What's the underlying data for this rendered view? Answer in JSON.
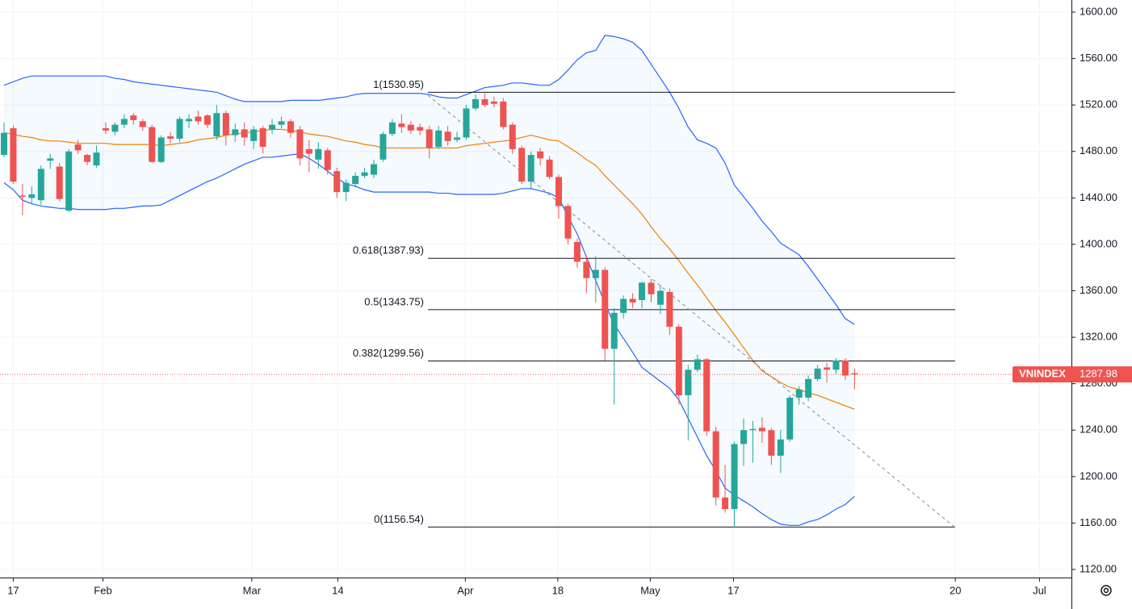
{
  "chart_data": {
    "type": "candlestick",
    "up_color": "#26a69a",
    "down_color": "#ef5350",
    "open": [
      1477,
      1500,
      1442,
      1440,
      1438,
      1472,
      1467,
      1429,
      1486,
      1477,
      1468,
      1500,
      1497,
      1503,
      1511,
      1506,
      1501,
      1471,
      1493,
      1491,
      1506,
      1510,
      1511,
      1493,
      1513,
      1494,
      1499,
      1489,
      1500,
      1499,
      1503,
      1506,
      1499,
      1482,
      1473,
      1481,
      1463,
      1445,
      1452,
      1459,
      1460,
      1473,
      1495,
      1504,
      1503,
      1501,
      1499,
      1484,
      1497,
      1490,
      1492,
      1517,
      1525,
      1523,
      1523,
      1503,
      1483,
      1454,
      1480,
      1473,
      1458,
      1433,
      1402,
      1385,
      1371,
      1378,
      1310,
      1341,
      1353,
      1352,
      1367,
      1348,
      1359,
      1329,
      1270,
      1292,
      1301,
      1239,
      1182,
      1172,
      1228,
      1240,
      1242,
      1240,
      1218,
      1232,
      1268,
      1268,
      1284,
      1294,
      1292,
      1300,
      1289
    ],
    "high": [
      1505,
      1502,
      1452,
      1450,
      1468,
      1478,
      1470,
      1482,
      1490,
      1478,
      1485,
      1505,
      1505,
      1512,
      1513,
      1508,
      1503,
      1494,
      1497,
      1510,
      1512,
      1515,
      1512,
      1520,
      1515,
      1504,
      1505,
      1502,
      1502,
      1508,
      1510,
      1508,
      1502,
      1490,
      1488,
      1483,
      1466,
      1456,
      1462,
      1466,
      1473,
      1497,
      1508,
      1512,
      1506,
      1504,
      1502,
      1502,
      1502,
      1497,
      1520,
      1529,
      1530,
      1527,
      1526,
      1505,
      1485,
      1480,
      1483,
      1476,
      1460,
      1435,
      1405,
      1390,
      1390,
      1380,
      1345,
      1356,
      1358,
      1368,
      1370,
      1365,
      1362,
      1331,
      1296,
      1305,
      1302,
      1243,
      1210,
      1230,
      1250,
      1248,
      1251,
      1242,
      1240,
      1270,
      1278,
      1287,
      1296,
      1298,
      1302,
      1302,
      1293
    ],
    "low": [
      1475,
      1452,
      1425,
      1435,
      1434,
      1465,
      1437,
      1428,
      1478,
      1468,
      1466,
      1495,
      1494,
      1500,
      1503,
      1498,
      1470,
      1470,
      1487,
      1488,
      1500,
      1503,
      1500,
      1490,
      1485,
      1488,
      1485,
      1482,
      1478,
      1495,
      1500,
      1492,
      1468,
      1462,
      1465,
      1460,
      1440,
      1437,
      1449,
      1457,
      1457,
      1471,
      1493,
      1496,
      1495,
      1494,
      1474,
      1482,
      1485,
      1488,
      1490,
      1515,
      1518,
      1518,
      1499,
      1478,
      1452,
      1447,
      1468,
      1456,
      1422,
      1400,
      1380,
      1358,
      1350,
      1300,
      1262,
      1336,
      1345,
      1345,
      1350,
      1340,
      1322,
      1262,
      1231,
      1290,
      1235,
      1175,
      1169,
      1156,
      1209,
      1212,
      1229,
      1210,
      1203,
      1230,
      1262,
      1265,
      1282,
      1281,
      1288,
      1283,
      1275
    ],
    "close": [
      1496,
      1454,
      1441,
      1443,
      1465,
      1474,
      1439,
      1480,
      1481,
      1471,
      1479,
      1498,
      1503,
      1508,
      1507,
      1501,
      1471,
      1492,
      1491,
      1508,
      1508,
      1506,
      1503,
      1513,
      1494,
      1499,
      1492,
      1499,
      1484,
      1503,
      1506,
      1496,
      1474,
      1478,
      1482,
      1464,
      1445,
      1453,
      1459,
      1462,
      1469,
      1495,
      1505,
      1501,
      1498,
      1498,
      1483,
      1498,
      1489,
      1492,
      1517,
      1525,
      1520,
      1521,
      1501,
      1482,
      1454,
      1477,
      1474,
      1458,
      1433,
      1405,
      1385,
      1371,
      1378,
      1310,
      1341,
      1353,
      1350,
      1367,
      1357,
      1360,
      1329,
      1270,
      1292,
      1301,
      1239,
      1182,
      1172,
      1228,
      1240,
      1241,
      1239,
      1218,
      1232,
      1268,
      1275,
      1284,
      1293,
      1292,
      1300,
      1287,
      1288
    ],
    "band_fill": "#2196f3",
    "overlays": [
      {
        "color": "#2962ff",
        "values": [
          1537,
          1540,
          1543,
          1545,
          1545,
          1545,
          1545,
          1545,
          1545,
          1545,
          1545,
          1545,
          1543,
          1542,
          1540,
          1539,
          1538,
          1537,
          1536,
          1535,
          1534,
          1533,
          1532,
          1531,
          1528,
          1525,
          1523,
          1523,
          1523,
          1523,
          1523,
          1524,
          1524,
          1524,
          1524,
          1525,
          1526,
          1527,
          1529,
          1530,
          1530,
          1530,
          1530,
          1530,
          1530,
          1530,
          1529,
          1527,
          1526,
          1526,
          1529,
          1532,
          1535,
          1536,
          1537,
          1539,
          1539,
          1538,
          1537,
          1537,
          1542,
          1550,
          1559,
          1565,
          1567,
          1580,
          1579,
          1577,
          1574,
          1567,
          1555,
          1543,
          1531,
          1517,
          1501,
          1490,
          1487,
          1483,
          1470,
          1451,
          1441,
          1431,
          1420,
          1411,
          1401,
          1396,
          1391,
          1381,
          1370,
          1359,
          1348,
          1336,
          1331
        ]
      },
      {
        "color": "#f57c00",
        "values": [
          1496,
          1495,
          1493,
          1492,
          1490,
          1489,
          1489,
          1488,
          1487,
          1487,
          1487,
          1487,
          1486,
          1486,
          1486,
          1486,
          1486,
          1485,
          1486,
          1487,
          1488,
          1490,
          1491,
          1492,
          1494,
          1495,
          1496,
          1497,
          1498,
          1499,
          1499,
          1498,
          1497,
          1495,
          1494,
          1493,
          1491,
          1489,
          1488,
          1486,
          1485,
          1483,
          1483,
          1483,
          1483,
          1483,
          1483,
          1483,
          1483,
          1483,
          1485,
          1486,
          1487,
          1488,
          1489,
          1490,
          1492,
          1494,
          1492,
          1490,
          1489,
          1484,
          1479,
          1473,
          1468,
          1459,
          1451,
          1443,
          1435,
          1426,
          1415,
          1405,
          1396,
          1386,
          1375,
          1365,
          1354,
          1343,
          1333,
          1322,
          1311,
          1300,
          1291,
          1286,
          1281,
          1277,
          1275,
          1272,
          1270,
          1267,
          1264,
          1261,
          1258
        ]
      },
      {
        "color": "#2962ff",
        "values": [
          1453,
          1447,
          1438,
          1435,
          1433,
          1432,
          1431,
          1431,
          1430,
          1430,
          1430,
          1430,
          1431,
          1431,
          1432,
          1433,
          1433,
          1434,
          1438,
          1442,
          1446,
          1450,
          1454,
          1457,
          1461,
          1465,
          1469,
          1472,
          1475,
          1475,
          1476,
          1477,
          1478,
          1474,
          1469,
          1463,
          1457,
          1452,
          1450,
          1447,
          1445,
          1445,
          1445,
          1445,
          1445,
          1445,
          1445,
          1444,
          1444,
          1443,
          1443,
          1443,
          1443,
          1443,
          1444,
          1446,
          1448,
          1448,
          1446,
          1444,
          1440,
          1424,
          1409,
          1389,
          1369,
          1349,
          1331,
          1319,
          1307,
          1294,
          1288,
          1282,
          1276,
          1266,
          1250,
          1234,
          1218,
          1205,
          1190,
          1184,
          1179,
          1174,
          1168,
          1163,
          1159,
          1158,
          1158,
          1161,
          1163,
          1167,
          1172,
          1176,
          1183
        ]
      }
    ],
    "fib_levels": [
      {
        "value": 1530.95,
        "label": "1(1530.95)"
      },
      {
        "value": 1387.93,
        "label": "0.618(1387.93)"
      },
      {
        "value": 1343.75,
        "label": "0.5(1343.75)"
      },
      {
        "value": 1299.56,
        "label": "0.382(1299.56)"
      },
      {
        "value": 1156.54,
        "label": "0(1156.54)"
      }
    ],
    "symbol": "VNINDEX",
    "last_price": {
      "value": 1287.98,
      "label": "1287.98"
    },
    "ylim": [
      1120,
      1600
    ],
    "yticks": [
      {
        "value": 1120,
        "label": "1120.00"
      },
      {
        "value": 1160,
        "label": "1160.00"
      },
      {
        "value": 1200,
        "label": "1200.00"
      },
      {
        "value": 1240,
        "label": "1240.00"
      },
      {
        "value": 1280,
        "label": "1280.00"
      },
      {
        "value": 1320,
        "label": "1320.00"
      },
      {
        "value": 1360,
        "label": "1360.00"
      },
      {
        "value": 1400,
        "label": "1400.00"
      },
      {
        "value": 1440,
        "label": "1440.00"
      },
      {
        "value": 1480,
        "label": "1480.00"
      },
      {
        "value": 1520,
        "label": "1520.00"
      },
      {
        "value": 1560,
        "label": "1560.00"
      },
      {
        "value": 1600,
        "label": "1600.00"
      }
    ],
    "xticks": [
      {
        "value": 1,
        "label": "17"
      },
      {
        "value": 10.7,
        "label": "Feb"
      },
      {
        "value": 26.8,
        "label": "Mar"
      },
      {
        "value": 36.1,
        "label": "14"
      },
      {
        "value": 49.9,
        "label": "Apr"
      },
      {
        "value": 59.9,
        "label": "18"
      },
      {
        "value": 69.9,
        "label": "May"
      },
      {
        "value": 78.9,
        "label": "17"
      },
      {
        "value": 102.9,
        "label": "20"
      },
      {
        "value": 112,
        "label": "Jul"
      }
    ],
    "grid": true
  }
}
